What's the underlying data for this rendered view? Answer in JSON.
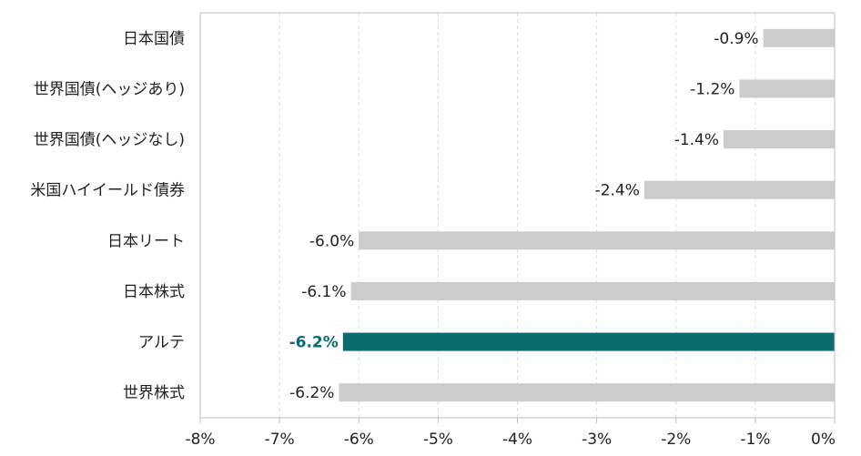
{
  "chart_data": {
    "type": "bar",
    "orientation": "horizontal",
    "title": "",
    "xlabel": "",
    "ylabel": "",
    "categories": [
      "日本国債",
      "世界国債(ヘッジあり)",
      "世界国債(ヘッジなし)",
      "米国ハイイールド債券",
      "日本リート",
      "日本株式",
      "アルテ",
      "世界株式"
    ],
    "values": [
      -0.9,
      -1.2,
      -1.4,
      -2.4,
      -6.0,
      -6.1,
      -6.2,
      -6.25
    ],
    "value_labels": [
      "-0.9%",
      "-1.2%",
      "-1.4%",
      "-2.4%",
      "-6.0%",
      "-6.1%",
      "-6.2%",
      "-6.2%"
    ],
    "highlight_index": 6,
    "xlim": [
      -8,
      0
    ],
    "xticks": [
      -8,
      -7,
      -6,
      -5,
      -4,
      -3,
      -2,
      -1,
      0
    ],
    "xtick_labels": [
      "-8%",
      "-7%",
      "-6%",
      "-5%",
      "-4%",
      "-3%",
      "-2%",
      "-1%",
      "0%"
    ],
    "grid": "vertical dashed",
    "legend": "none",
    "colors": {
      "bar": "#cccccc",
      "highlight": "#0b6b6e",
      "grid": "#dddddd",
      "axis": "#bfbfbf"
    }
  }
}
